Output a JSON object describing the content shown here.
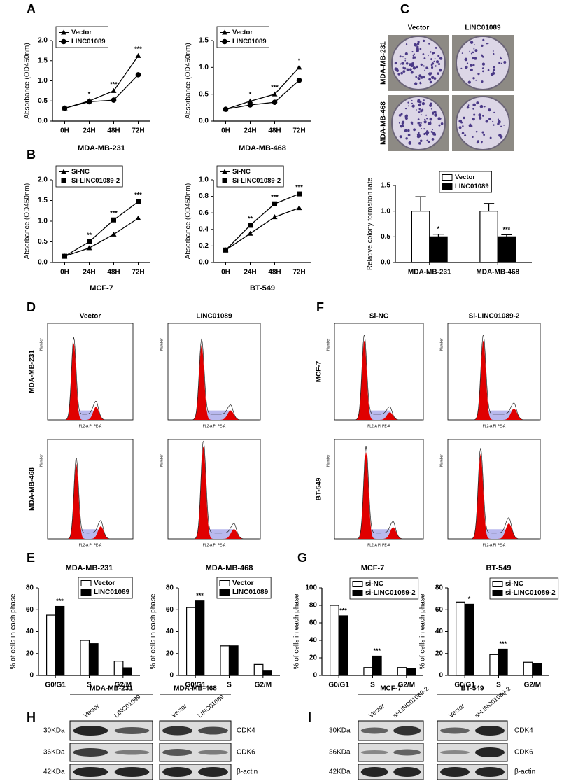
{
  "figure": {
    "panel_labels": [
      "A",
      "B",
      "C",
      "D",
      "E",
      "F",
      "G",
      "H",
      "I"
    ],
    "colony": {
      "columns": [
        "Vector",
        "LINC01089"
      ],
      "rows": [
        "MDA-MB-231",
        "MDA-MB-468"
      ]
    },
    "flow_d": {
      "columns": [
        "Vector",
        "LINC01089"
      ],
      "rows": [
        "MDA-MB-231",
        "MDA-MB-468"
      ]
    },
    "flow_f": {
      "columns": [
        "Si-NC",
        "Si-LINC01089-2"
      ],
      "rows": [
        "MCF-7",
        "BT-549"
      ]
    },
    "flow_axes": {
      "x": "FL2-A PI PE-A",
      "y": "Number"
    },
    "blot_h": {
      "groups": [
        "MDA-MB-231",
        "MDA-MB-468"
      ],
      "lanes": [
        "Vector",
        "LINC01089"
      ],
      "sizes": [
        "30KDa",
        "36KDa",
        "42KDa"
      ],
      "proteins": [
        "CDK4",
        "CDK6",
        "β-actin"
      ]
    },
    "blot_i": {
      "groups": [
        "MCF-7",
        "BT-549"
      ],
      "lanes": [
        "Vector",
        "si-LINC01089-2"
      ],
      "sizes": [
        "30KDa",
        "36KDa",
        "42KDa"
      ],
      "proteins": [
        "CDK4",
        "CDK6",
        "β-actin"
      ]
    }
  },
  "chart_data": [
    {
      "type": "line",
      "title": "MDA-MB-231",
      "y_label": "Absorbance (OD450nm)",
      "categories": [
        "0H",
        "24H",
        "48H",
        "72H"
      ],
      "series": [
        {
          "name": "Vector",
          "color": "#000000",
          "marker": "triangle",
          "values": [
            0.32,
            0.5,
            0.75,
            1.62
          ]
        },
        {
          "name": "LINC01089",
          "color": "#000000",
          "marker": "circle",
          "values": [
            0.32,
            0.48,
            0.52,
            1.15
          ]
        }
      ],
      "annotations": [
        null,
        "*",
        "***",
        "***"
      ],
      "ylim": [
        0,
        2
      ],
      "yticks": [
        {
          "value": 0,
          "label": "0.0"
        },
        {
          "value": 0.5,
          "label": "0.5"
        },
        {
          "value": 1,
          "label": "1.0"
        },
        {
          "value": 1.5,
          "label": "1.5"
        },
        {
          "value": 2,
          "label": "2.0"
        }
      ]
    },
    {
      "type": "line",
      "title": "MDA-MB-468",
      "y_label": "Absorbance (OD450nm)",
      "categories": [
        "0H",
        "24H",
        "48H",
        "72H"
      ],
      "series": [
        {
          "name": "Vector",
          "color": "#000000",
          "marker": "triangle",
          "values": [
            0.22,
            0.37,
            0.5,
            1.0
          ]
        },
        {
          "name": "LINC01089",
          "color": "#000000",
          "marker": "circle",
          "values": [
            0.22,
            0.3,
            0.35,
            0.76
          ]
        }
      ],
      "annotations": [
        null,
        "*",
        "***",
        "*"
      ],
      "ylim": [
        0,
        1.5
      ],
      "yticks": [
        {
          "value": 0,
          "label": "0.0"
        },
        {
          "value": 0.5,
          "label": "0.5"
        },
        {
          "value": 1,
          "label": "1.0"
        },
        {
          "value": 1.5,
          "label": "1.5"
        }
      ]
    },
    {
      "type": "line",
      "title": "MCF-7",
      "y_label": "Absorbance (OD450nm)",
      "categories": [
        "0H",
        "24H",
        "48H",
        "72H"
      ],
      "series": [
        {
          "name": "Si-NC",
          "color": "#000000",
          "marker": "triangle",
          "values": [
            0.15,
            0.35,
            0.68,
            1.07
          ]
        },
        {
          "name": "Si-LINC01089-2",
          "color": "#000000",
          "marker": "square",
          "values": [
            0.15,
            0.5,
            1.03,
            1.47
          ]
        }
      ],
      "annotations": [
        null,
        "**",
        "***",
        "***"
      ],
      "ylim": [
        0,
        2
      ],
      "yticks": [
        {
          "value": 0,
          "label": "0.0"
        },
        {
          "value": 0.5,
          "label": "0.5"
        },
        {
          "value": 1,
          "label": "1.0"
        },
        {
          "value": 1.5,
          "label": "1.5"
        },
        {
          "value": 2,
          "label": "2.0"
        }
      ]
    },
    {
      "type": "line",
      "title": "BT-549",
      "y_label": "Absorbance (OD450nm)",
      "categories": [
        "0H",
        "24H",
        "48H",
        "72H"
      ],
      "series": [
        {
          "name": "Si-NC",
          "color": "#000000",
          "marker": "triangle",
          "values": [
            0.15,
            0.35,
            0.55,
            0.66
          ]
        },
        {
          "name": "Si-LINC01089-2",
          "color": "#000000",
          "marker": "square",
          "values": [
            0.15,
            0.45,
            0.71,
            0.83
          ]
        }
      ],
      "annotations": [
        null,
        "**",
        "***",
        "***"
      ],
      "ylim": [
        0,
        1
      ],
      "yticks": [
        {
          "value": 0,
          "label": "0.0"
        },
        {
          "value": 0.2,
          "label": "0.2"
        },
        {
          "value": 0.4,
          "label": "0.4"
        },
        {
          "value": 0.6,
          "label": "0.6"
        },
        {
          "value": 0.8,
          "label": "0.8"
        },
        {
          "value": 1,
          "label": "1.0"
        }
      ]
    },
    {
      "type": "bar",
      "y_label": "Relative colony formation rate",
      "categories": [
        "MDA-MB-231",
        "MDA-MB-468"
      ],
      "series": [
        {
          "name": "Vector",
          "color": "#ffffff",
          "values": [
            1.0,
            1.0
          ],
          "errors": [
            0.28,
            0.15
          ]
        },
        {
          "name": "LINC01089",
          "color": "#000000",
          "values": [
            0.5,
            0.5
          ],
          "errors": [
            0.05,
            0.04
          ]
        }
      ],
      "annotations": [
        "*",
        "***"
      ],
      "ylim": [
        0,
        1.5
      ],
      "yticks": [
        {
          "value": 0,
          "label": "0.0"
        },
        {
          "value": 0.5,
          "label": "0.5"
        },
        {
          "value": 1,
          "label": "1.0"
        },
        {
          "value": 1.5,
          "label": "1.5"
        }
      ]
    },
    {
      "type": "bar",
      "title": "MDA-MB-231",
      "y_label": "% of cells in each phase",
      "categories": [
        "G0/G1",
        "S",
        "G2/M"
      ],
      "series": [
        {
          "name": "Vector",
          "color": "#ffffff",
          "values": [
            55,
            32,
            13
          ]
        },
        {
          "name": "LINC01089",
          "color": "#000000",
          "values": [
            63,
            29,
            7
          ]
        }
      ],
      "annotations": [
        "***",
        null,
        null
      ],
      "ylim": [
        0,
        80
      ],
      "yticks": [
        0,
        20,
        40,
        60,
        80
      ]
    },
    {
      "type": "bar",
      "title": "MDA-MB-468",
      "y_label": "% of cells in each phase",
      "categories": [
        "G0/G1",
        "S",
        "G2/M"
      ],
      "series": [
        {
          "name": "Vector",
          "color": "#ffffff",
          "values": [
            62,
            27,
            10
          ]
        },
        {
          "name": "LINC01089",
          "color": "#000000",
          "values": [
            68,
            27,
            4
          ]
        }
      ],
      "annotations": [
        "***",
        null,
        null
      ],
      "ylim": [
        0,
        80
      ],
      "yticks": [
        0,
        20,
        40,
        60,
        80
      ]
    },
    {
      "type": "bar",
      "title": "MCF-7",
      "y_label": "% of cells in each phase",
      "categories": [
        "G0/G1",
        "S",
        "G2/M"
      ],
      "series": [
        {
          "name": "si-NC",
          "color": "#ffffff",
          "values": [
            80,
            9,
            9
          ]
        },
        {
          "name": "si-LINC01089-2",
          "color": "#000000",
          "values": [
            68,
            22,
            8
          ]
        }
      ],
      "annotations": [
        "***",
        "***",
        null
      ],
      "ylim": [
        0,
        100
      ],
      "yticks": [
        0,
        20,
        40,
        60,
        80,
        100
      ]
    },
    {
      "type": "bar",
      "title": "BT-549",
      "y_label": "% of cells in each phase",
      "categories": [
        "G0/G1",
        "S",
        "G2/M"
      ],
      "series": [
        {
          "name": "si-NC",
          "color": "#ffffff",
          "values": [
            67,
            19,
            12
          ]
        },
        {
          "name": "si-LINC01089-2",
          "color": "#000000",
          "values": [
            65,
            24,
            11
          ]
        }
      ],
      "annotations": [
        "*",
        "***",
        null
      ],
      "ylim": [
        0,
        80
      ],
      "yticks": [
        0,
        20,
        40,
        60,
        80
      ]
    }
  ]
}
